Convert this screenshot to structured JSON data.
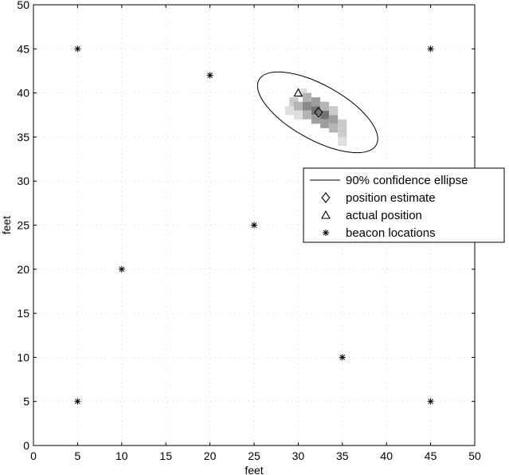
{
  "chart_data": {
    "type": "scatter",
    "xlabel": "feet",
    "ylabel": "feet",
    "xlim": [
      0,
      50
    ],
    "ylim": [
      0,
      50
    ],
    "x_ticks": [
      0,
      5,
      10,
      15,
      20,
      25,
      30,
      35,
      40,
      45,
      50
    ],
    "y_ticks": [
      0,
      5,
      10,
      15,
      20,
      25,
      30,
      35,
      40,
      45,
      50
    ],
    "grid": "dotted",
    "legend_position": "right",
    "legend": [
      {
        "marker": "line",
        "label": "90% confidence ellipse"
      },
      {
        "marker": "diamond",
        "label": "position estimate"
      },
      {
        "marker": "triangle",
        "label": "actual position"
      },
      {
        "marker": "asterisk",
        "label": "beacon locations"
      }
    ],
    "series": [
      {
        "name": "beacon locations",
        "marker": "asterisk",
        "points": [
          [
            5,
            45
          ],
          [
            20,
            42
          ],
          [
            45,
            45
          ],
          [
            25,
            25
          ],
          [
            10,
            20
          ],
          [
            35,
            10
          ],
          [
            5,
            5
          ],
          [
            45,
            5
          ]
        ]
      },
      {
        "name": "position estimate",
        "marker": "diamond",
        "points": [
          [
            32.3,
            37.8
          ]
        ]
      },
      {
        "name": "actual position",
        "marker": "triangle",
        "points": [
          [
            30,
            40
          ]
        ]
      }
    ],
    "confidence_ellipse": {
      "center": [
        32.2,
        37.8
      ],
      "semi_major": 7.6,
      "semi_minor": 3.1,
      "angle_deg": -29
    },
    "probability_density": [
      {
        "x": 29.5,
        "y": 39,
        "w": 2
      },
      {
        "x": 30,
        "y": 38.5,
        "w": 3
      },
      {
        "x": 30.5,
        "y": 40,
        "w": 1
      },
      {
        "x": 31,
        "y": 38.5,
        "w": 5
      },
      {
        "x": 31,
        "y": 39.5,
        "w": 3
      },
      {
        "x": 31,
        "y": 37.5,
        "w": 3
      },
      {
        "x": 32,
        "y": 38,
        "w": 6
      },
      {
        "x": 32,
        "y": 37,
        "w": 4
      },
      {
        "x": 32,
        "y": 39,
        "w": 4
      },
      {
        "x": 33,
        "y": 37.5,
        "w": 6
      },
      {
        "x": 33,
        "y": 36.5,
        "w": 4
      },
      {
        "x": 33,
        "y": 38.5,
        "w": 3
      },
      {
        "x": 34,
        "y": 37,
        "w": 4
      },
      {
        "x": 34,
        "y": 36,
        "w": 3
      },
      {
        "x": 34,
        "y": 38,
        "w": 2
      },
      {
        "x": 35,
        "y": 36.5,
        "w": 2
      },
      {
        "x": 35,
        "y": 35.5,
        "w": 2
      },
      {
        "x": 30,
        "y": 37.5,
        "w": 1
      },
      {
        "x": 29,
        "y": 38,
        "w": 1
      },
      {
        "x": 35,
        "y": 34.5,
        "w": 1
      }
    ]
  }
}
